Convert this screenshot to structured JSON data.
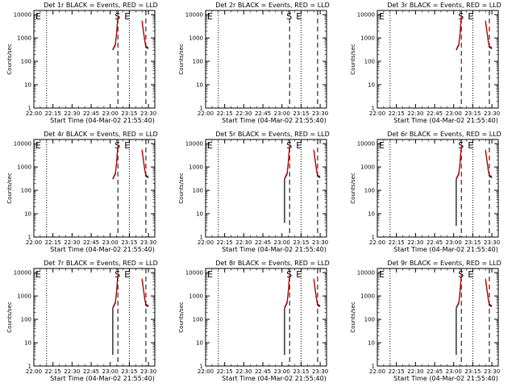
{
  "chart_data": {
    "type": "line",
    "layout": {
      "rows": 3,
      "cols": 3
    },
    "xlabel": "Start Time (04-Mar-02 21:55:40)",
    "ylabel": "Counts/sec",
    "yscale": "log",
    "ylim": [
      1,
      15000
    ],
    "xlim": [
      "22:00",
      "23:35"
    ],
    "x_ticks": [
      "22:00",
      "22:15",
      "22:30",
      "22:45",
      "23:00",
      "23:15",
      "23:30"
    ],
    "y_ticks": [
      "1",
      "10",
      "100",
      "1000",
      "10000"
    ],
    "colors": {
      "events": "#000000",
      "lld": "#cc0000"
    },
    "dotted_lines_x": [
      "22:10",
      "23:15"
    ],
    "markers": {
      "S": "S",
      "E": "E"
    },
    "panels": [
      {
        "title": "Det 1r BLACK = Events, RED = LLD",
        "dashed_x": [
          "23:06",
          "23:28"
        ],
        "event_spike_min": null,
        "series": [
          {
            "name": "Events",
            "segments": [
              [
                [
                  "23:02",
                  300
                ],
                [
                  "23:04",
                  500
                ],
                [
                  "23:05",
                  1500
                ],
                [
                  "23:06",
                  8000
                ]
              ],
              [
                [
                  "23:25",
                  5000
                ],
                [
                  "23:27",
                  800
                ],
                [
                  "23:28",
                  400
                ],
                [
                  "23:30",
                  350
                ]
              ]
            ]
          },
          {
            "name": "LLD",
            "segments": [
              [
                [
                  "23:02",
                  320
                ],
                [
                  "23:04",
                  550
                ],
                [
                  "23:05",
                  1600
                ],
                [
                  "23:06",
                  9000
                ]
              ],
              [
                [
                  "23:25",
                  5500
                ],
                [
                  "23:27",
                  850
                ],
                [
                  "23:28",
                  450
                ],
                [
                  "23:30",
                  380
                ]
              ]
            ]
          }
        ]
      },
      {
        "title": "Det 2r BLACK = Events, RED = LLD",
        "dashed_x": [
          "23:06",
          "23:28"
        ],
        "event_spike_min": null,
        "series": []
      },
      {
        "title": "Det 3r BLACK = Events, RED = LLD",
        "dashed_x": [
          "23:06",
          "23:28"
        ],
        "event_spike_min": null,
        "series": [
          {
            "name": "Events",
            "segments": [
              [
                [
                  "23:02",
                  300
                ],
                [
                  "23:04",
                  500
                ],
                [
                  "23:05",
                  1500
                ],
                [
                  "23:06",
                  8000
                ]
              ],
              [
                [
                  "23:25",
                  5000
                ],
                [
                  "23:27",
                  800
                ],
                [
                  "23:28",
                  400
                ],
                [
                  "23:30",
                  350
                ]
              ]
            ]
          },
          {
            "name": "LLD",
            "segments": [
              [
                [
                  "23:02",
                  320
                ],
                [
                  "23:04",
                  550
                ],
                [
                  "23:05",
                  1600
                ],
                [
                  "23:06",
                  9000
                ]
              ],
              [
                [
                  "23:25",
                  5500
                ],
                [
                  "23:27",
                  850
                ],
                [
                  "23:28",
                  450
                ],
                [
                  "23:30",
                  380
                ]
              ]
            ]
          }
        ]
      },
      {
        "title": "Det 4r BLACK = Events, RED = LLD",
        "dashed_x": [
          "23:06",
          "23:28"
        ],
        "event_spike_min": null,
        "series": [
          {
            "name": "Events",
            "segments": [
              [
                [
                  "23:02",
                  300
                ],
                [
                  "23:04",
                  500
                ],
                [
                  "23:05",
                  1500
                ],
                [
                  "23:06",
                  8000
                ]
              ],
              [
                [
                  "23:25",
                  5000
                ],
                [
                  "23:27",
                  800
                ],
                [
                  "23:28",
                  400
                ],
                [
                  "23:30",
                  350
                ]
              ]
            ]
          },
          {
            "name": "LLD",
            "segments": [
              [
                [
                  "23:02",
                  320
                ],
                [
                  "23:04",
                  550
                ],
                [
                  "23:05",
                  1600
                ],
                [
                  "23:06",
                  9000
                ]
              ],
              [
                [
                  "23:25",
                  5500
                ],
                [
                  "23:27",
                  850
                ],
                [
                  "23:28",
                  450
                ],
                [
                  "23:30",
                  380
                ]
              ]
            ]
          }
        ]
      },
      {
        "title": "Det 5r BLACK = Events, RED = LLD",
        "dashed_x": [
          "23:06",
          "23:28"
        ],
        "event_spike_min": 4,
        "series": [
          {
            "name": "Events",
            "segments": [
              [
                [
                  "23:02",
                  300
                ],
                [
                  "23:04",
                  500
                ],
                [
                  "23:05",
                  1500
                ],
                [
                  "23:06",
                  8000
                ]
              ],
              [
                [
                  "23:25",
                  5000
                ],
                [
                  "23:27",
                  800
                ],
                [
                  "23:28",
                  400
                ],
                [
                  "23:30",
                  350
                ]
              ]
            ]
          },
          {
            "name": "LLD",
            "segments": [
              [
                [
                  "23:02",
                  320
                ],
                [
                  "23:04",
                  550
                ],
                [
                  "23:05",
                  1600
                ],
                [
                  "23:06",
                  9000
                ]
              ],
              [
                [
                  "23:25",
                  5500
                ],
                [
                  "23:27",
                  850
                ],
                [
                  "23:28",
                  450
                ],
                [
                  "23:30",
                  380
                ]
              ]
            ]
          }
        ]
      },
      {
        "title": "Det 6r BLACK = Events, RED = LLD",
        "dashed_x": [
          "23:06",
          "23:28"
        ],
        "event_spike_min": 3,
        "series": [
          {
            "name": "Events",
            "segments": [
              [
                [
                  "23:02",
                  300
                ],
                [
                  "23:04",
                  500
                ],
                [
                  "23:05",
                  1500
                ],
                [
                  "23:06",
                  8000
                ]
              ],
              [
                [
                  "23:25",
                  5000
                ],
                [
                  "23:27",
                  800
                ],
                [
                  "23:28",
                  400
                ],
                [
                  "23:30",
                  350
                ]
              ]
            ]
          },
          {
            "name": "LLD",
            "segments": [
              [
                [
                  "23:02",
                  320
                ],
                [
                  "23:04",
                  550
                ],
                [
                  "23:05",
                  1600
                ],
                [
                  "23:06",
                  9000
                ]
              ],
              [
                [
                  "23:25",
                  5500
                ],
                [
                  "23:27",
                  850
                ],
                [
                  "23:28",
                  450
                ],
                [
                  "23:30",
                  380
                ]
              ]
            ]
          }
        ]
      },
      {
        "title": "Det 7r BLACK = Events, RED = LLD",
        "dashed_x": [
          "23:06",
          "23:28"
        ],
        "event_spike_min": 3,
        "series": [
          {
            "name": "Events",
            "segments": [
              [
                [
                  "23:02",
                  300
                ],
                [
                  "23:04",
                  500
                ],
                [
                  "23:05",
                  1500
                ],
                [
                  "23:06",
                  8000
                ]
              ],
              [
                [
                  "23:25",
                  5000
                ],
                [
                  "23:27",
                  800
                ],
                [
                  "23:28",
                  400
                ],
                [
                  "23:30",
                  350
                ]
              ]
            ]
          },
          {
            "name": "LLD",
            "segments": [
              [
                [
                  "23:02",
                  320
                ],
                [
                  "23:04",
                  550
                ],
                [
                  "23:05",
                  1600
                ],
                [
                  "23:06",
                  9000
                ]
              ],
              [
                [
                  "23:25",
                  5500
                ],
                [
                  "23:27",
                  850
                ],
                [
                  "23:28",
                  450
                ],
                [
                  "23:30",
                  380
                ]
              ]
            ]
          }
        ]
      },
      {
        "title": "Det 8r BLACK = Events, RED = LLD",
        "dashed_x": [
          "23:06",
          "23:28"
        ],
        "event_spike_min": 3,
        "series": [
          {
            "name": "Events",
            "segments": [
              [
                [
                  "23:02",
                  300
                ],
                [
                  "23:04",
                  500
                ],
                [
                  "23:05",
                  1500
                ],
                [
                  "23:06",
                  8000
                ]
              ],
              [
                [
                  "23:25",
                  5000
                ],
                [
                  "23:27",
                  800
                ],
                [
                  "23:28",
                  400
                ],
                [
                  "23:30",
                  350
                ]
              ]
            ]
          },
          {
            "name": "LLD",
            "segments": [
              [
                [
                  "23:02",
                  320
                ],
                [
                  "23:04",
                  550
                ],
                [
                  "23:05",
                  1600
                ],
                [
                  "23:06",
                  9000
                ]
              ],
              [
                [
                  "23:25",
                  5500
                ],
                [
                  "23:27",
                  850
                ],
                [
                  "23:28",
                  450
                ],
                [
                  "23:30",
                  380
                ]
              ]
            ]
          }
        ]
      },
      {
        "title": "Det 9r BLACK = Events, RED = LLD",
        "dashed_x": [
          "23:06",
          "23:28"
        ],
        "event_spike_min": 3,
        "series": [
          {
            "name": "Events",
            "segments": [
              [
                [
                  "23:02",
                  300
                ],
                [
                  "23:04",
                  500
                ],
                [
                  "23:05",
                  1500
                ],
                [
                  "23:06",
                  8000
                ]
              ],
              [
                [
                  "23:25",
                  5000
                ],
                [
                  "23:27",
                  800
                ],
                [
                  "23:28",
                  400
                ],
                [
                  "23:30",
                  350
                ]
              ]
            ]
          },
          {
            "name": "LLD",
            "segments": [
              [
                [
                  "23:02",
                  320
                ],
                [
                  "23:04",
                  550
                ],
                [
                  "23:05",
                  1600
                ],
                [
                  "23:06",
                  9000
                ]
              ],
              [
                [
                  "23:25",
                  5500
                ],
                [
                  "23:27",
                  850
                ],
                [
                  "23:28",
                  450
                ],
                [
                  "23:30",
                  380
                ]
              ]
            ]
          }
        ]
      }
    ]
  }
}
